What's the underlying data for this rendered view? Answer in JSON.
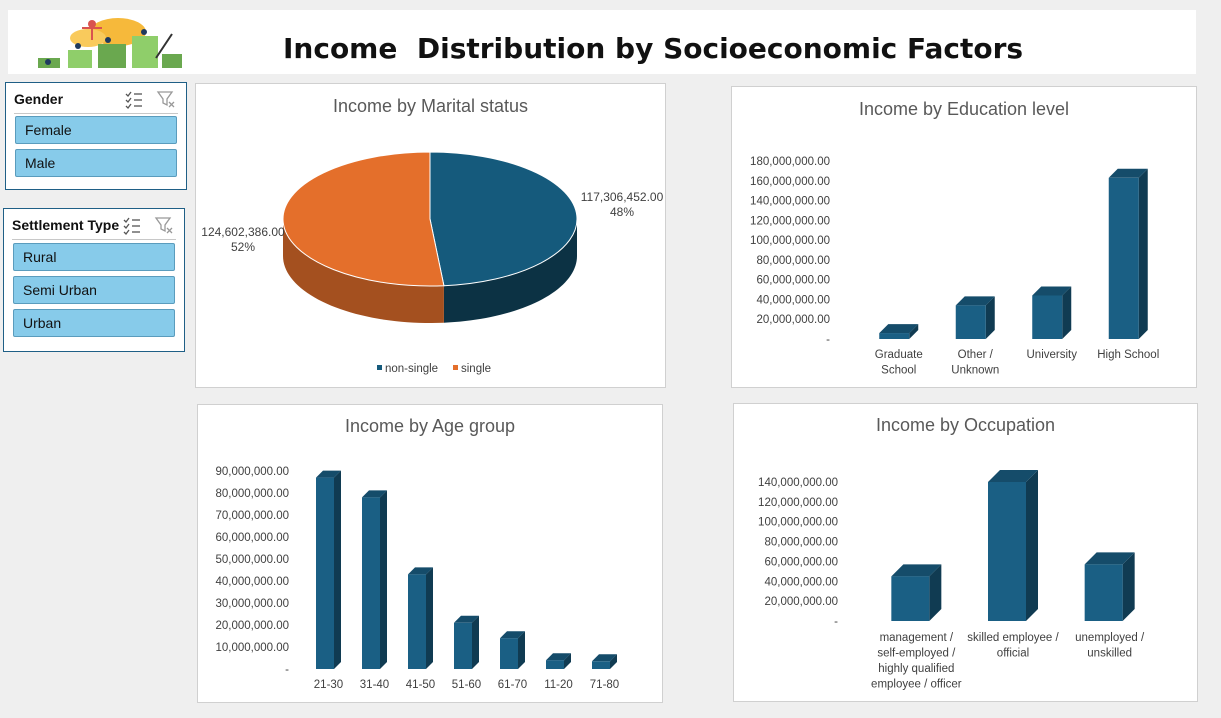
{
  "header": {
    "title": "Income  Distribution by Socioeconomic Factors"
  },
  "slicers": {
    "gender": {
      "title": "Gender",
      "items": [
        "Female",
        "Male"
      ]
    },
    "settlement": {
      "title": "Settlement Type",
      "items": [
        "Rural",
        "Semi Urban",
        "Urban"
      ]
    }
  },
  "colors": {
    "bar": "#1a5f84",
    "pie_a": "#155a7c",
    "pie_b": "#e46f2b",
    "slicer_btn": "#87cbea"
  },
  "chart_data": [
    {
      "type": "pie",
      "title": "Income by Marital status",
      "labels": [
        "non-single",
        "single"
      ],
      "values": [
        117306452.0,
        124602386.0
      ],
      "value_labels": [
        "117,306,452.00",
        "124,602,386.00"
      ],
      "percent_labels": [
        "48%",
        "52%"
      ],
      "legend": "bottom"
    },
    {
      "type": "bar",
      "title": "Income by Education level",
      "categories": [
        [
          "Graduate",
          "School"
        ],
        [
          "Other /",
          "Unknown"
        ],
        [
          "University"
        ],
        [
          "High School"
        ]
      ],
      "values": [
        6000000,
        34000000,
        44000000,
        163000000
      ],
      "ylim": [
        0,
        180000000
      ],
      "yticks": [
        "-",
        "20,000,000.00",
        "40,000,000.00",
        "60,000,000.00",
        "80,000,000.00",
        "100,000,000.00",
        "120,000,000.00",
        "140,000,000.00",
        "160,000,000.00",
        "180,000,000.00"
      ],
      "grid": false
    },
    {
      "type": "bar",
      "title": "Income by Age group",
      "categories": [
        [
          "21-30"
        ],
        [
          "31-40"
        ],
        [
          "41-50"
        ],
        [
          "51-60"
        ],
        [
          "61-70"
        ],
        [
          "11-20"
        ],
        [
          "71-80"
        ]
      ],
      "values": [
        87000000,
        78000000,
        43000000,
        21000000,
        14000000,
        4000000,
        3500000
      ],
      "ylim": [
        0,
        90000000
      ],
      "yticks": [
        "-",
        "10,000,000.00",
        "20,000,000.00",
        "30,000,000.00",
        "40,000,000.00",
        "50,000,000.00",
        "60,000,000.00",
        "70,000,000.00",
        "80,000,000.00",
        "90,000,000.00"
      ],
      "grid": false
    },
    {
      "type": "bar",
      "title": "Income by Occupation",
      "categories": [
        [
          "management /",
          "self-employed /",
          "highly qualified",
          "employee / officer"
        ],
        [
          "skilled employee /",
          "official"
        ],
        [
          "unemployed /",
          "unskilled"
        ]
      ],
      "values": [
        45000000,
        140000000,
        57000000
      ],
      "ylim": [
        0,
        140000000
      ],
      "yticks": [
        "-",
        "20,000,000.00",
        "40,000,000.00",
        "60,000,000.00",
        "80,000,000.00",
        "100,000,000.00",
        "120,000,000.00",
        "140,000,000.00"
      ],
      "grid": false
    }
  ]
}
